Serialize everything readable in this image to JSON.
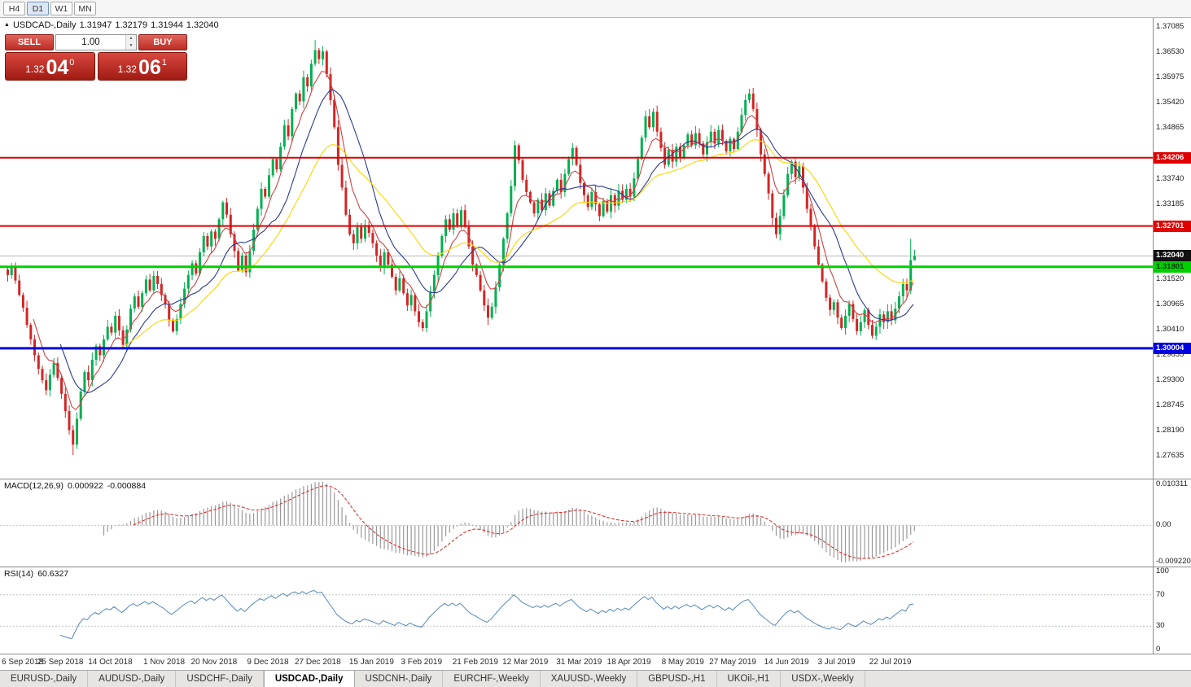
{
  "toolbar": {
    "timeframes": [
      {
        "label": "H4",
        "active": false
      },
      {
        "label": "D1",
        "active": true
      },
      {
        "label": "W1",
        "active": false
      },
      {
        "label": "MN",
        "active": false
      }
    ]
  },
  "chart_title": {
    "icon": "▲",
    "symbol": "USDCAD-,Daily",
    "open": "1.31947",
    "high": "1.32179",
    "low": "1.31944",
    "close": "1.32040"
  },
  "trade_panel": {
    "sell_label": "SELL",
    "buy_label": "BUY",
    "volume": "1.00",
    "bid": {
      "prefix": "1.32",
      "big": "04",
      "sup": "0"
    },
    "ask": {
      "prefix": "1.32",
      "big": "06",
      "sup": "1"
    }
  },
  "chart_data": {
    "type": "candlestick",
    "title": "USDCAD-,Daily",
    "x_labels": [
      "6 Sep 2018",
      "25 Sep 2018",
      "14 Oct 2018",
      "1 Nov 2018",
      "20 Nov 2018",
      "9 Dec 2018",
      "27 Dec 2018",
      "15 Jan 2019",
      "3 Feb 2019",
      "21 Feb 2019",
      "12 Mar 2019",
      "31 Mar 2019",
      "18 Apr 2019",
      "8 May 2019",
      "27 May 2019",
      "14 Jun 2019",
      "3 Jul 2019",
      "22 Jul 2019"
    ],
    "x_label_indices": [
      0,
      14,
      27,
      41,
      54,
      68,
      81,
      95,
      108,
      122,
      135,
      149,
      162,
      176,
      189,
      203,
      216,
      230
    ],
    "closes": [
      1.3162,
      1.3178,
      1.315,
      1.3118,
      1.309,
      1.3052,
      1.302,
      1.2985,
      1.2955,
      1.293,
      1.2908,
      1.2942,
      1.2968,
      1.2935,
      1.29,
      1.2862,
      1.282,
      1.2788,
      1.2845,
      1.2905,
      1.2948,
      1.293,
      1.2975,
      1.3005,
      1.2985,
      1.302,
      1.3048,
      1.3035,
      1.3072,
      1.304,
      1.3008,
      1.3042,
      1.3088,
      1.3115,
      1.3092,
      1.3122,
      1.3152,
      1.3128,
      1.316,
      1.3142,
      1.3118,
      1.3098,
      1.3062,
      1.3038,
      1.3065,
      1.3098,
      1.3132,
      1.3162,
      1.3188,
      1.3165,
      1.3212,
      1.3248,
      1.3225,
      1.3258,
      1.3242,
      1.3285,
      1.3322,
      1.3295,
      1.3252,
      1.3215,
      1.3172,
      1.3205,
      1.3168,
      1.3215,
      1.3262,
      1.3308,
      1.3352,
      1.3335,
      1.3382,
      1.3418,
      1.3395,
      1.3445,
      1.3492,
      1.3468,
      1.3528,
      1.3562,
      1.3545,
      1.3598,
      1.3578,
      1.3628,
      1.3658,
      1.3638,
      1.3655,
      1.3605,
      1.3548,
      1.3488,
      1.3405,
      1.3355,
      1.3295,
      1.3252,
      1.3232,
      1.3268,
      1.3242,
      1.3272,
      1.3255,
      1.3232,
      1.3205,
      1.3178,
      1.3212,
      1.3185,
      1.3158,
      1.3128,
      1.3155,
      1.3122,
      1.3095,
      1.3118,
      1.3082,
      1.3058,
      1.3045,
      1.3082,
      1.3125,
      1.3162,
      1.3205,
      1.3248,
      1.3285,
      1.3262,
      1.3298,
      1.3272,
      1.3305,
      1.3268,
      1.3225,
      1.3185,
      1.3162,
      1.3128,
      1.3095,
      1.3068,
      1.3092,
      1.3135,
      1.3185,
      1.3242,
      1.3298,
      1.3358,
      1.3448,
      1.3415,
      1.3372,
      1.3345,
      1.3322,
      1.3298,
      1.3328,
      1.3305,
      1.3342,
      1.3315,
      1.3348,
      1.3372,
      1.3345,
      1.3385,
      1.3418,
      1.3442,
      1.3405,
      1.3365,
      1.3338,
      1.3312,
      1.3345,
      1.3318,
      1.3292,
      1.3325,
      1.3302,
      1.3338,
      1.3315,
      1.3348,
      1.3328,
      1.3352,
      1.3335,
      1.3375,
      1.3418,
      1.3465,
      1.3512,
      1.3488,
      1.3522,
      1.3478,
      1.3442,
      1.3405,
      1.3438,
      1.3412,
      1.3445,
      1.3422,
      1.3448,
      1.3472,
      1.3448,
      1.3475,
      1.3452,
      1.3428,
      1.3455,
      1.3478,
      1.3452,
      1.3482,
      1.3458,
      1.3435,
      1.3462,
      1.344,
      1.3478,
      1.3515,
      1.3548,
      1.3562,
      1.3528,
      1.3482,
      1.3428,
      1.3385,
      1.3342,
      1.3288,
      1.3252,
      1.3292,
      1.3338,
      1.3385,
      1.3412,
      1.3378,
      1.3402,
      1.3355,
      1.3308,
      1.3272,
      1.3225,
      1.3185,
      1.3148,
      1.3112,
      1.3085,
      1.3102,
      1.3068,
      1.3045,
      1.3072,
      1.3098,
      1.3065,
      1.3038,
      1.3058,
      1.3085,
      1.3052,
      1.3028,
      1.3048,
      1.3075,
      1.3058,
      1.3082,
      1.3062,
      1.3088,
      1.3115,
      1.3142,
      1.3128,
      1.3195,
      1.3204
    ],
    "last_candle": {
      "open": 1.31947,
      "high": 1.32179,
      "low": 1.31944,
      "close": 1.3204
    },
    "extremes": {
      "high": {
        "index": 80,
        "price": 1.368
      },
      "low": {
        "index": 17,
        "price": 1.2765
      },
      "late_spike": {
        "index": 235,
        "price": 1.3242
      }
    },
    "price_axis": {
      "min": 1.2713,
      "max": 1.3729,
      "ticks": [
        1.37085,
        1.3653,
        1.35975,
        1.3542,
        1.34865,
        1.3374,
        1.33185,
        1.3152,
        1.30965,
        1.3041,
        1.29855,
        1.293,
        1.28745,
        1.2819,
        1.27635
      ]
    },
    "hlines": [
      {
        "value": 1.34206,
        "label": "1.34206",
        "color": "#e00000",
        "width": 2,
        "text": "#ffffff"
      },
      {
        "value": 1.32701,
        "label": "1.32701",
        "color": "#e00000",
        "width": 2,
        "text": "#ffffff"
      },
      {
        "value": 1.31801,
        "label": "1.31801",
        "color": "#00d000",
        "width": 3,
        "text": "#003300"
      },
      {
        "value": 1.30004,
        "label": "1.30004",
        "color": "#0000e0",
        "width": 3,
        "text": "#ffffff"
      }
    ],
    "current_price": {
      "value": 1.3204,
      "label": "1.32040",
      "bg": "#111111",
      "text": "#ffffff"
    },
    "colors": {
      "up": "#00b050",
      "down": "#d32525"
    },
    "moving_averages": [
      {
        "period": 7,
        "type": "ema",
        "color": "#cc4444"
      },
      {
        "period": 14,
        "type": "sma",
        "color": "#2b3a94"
      },
      {
        "period": 30,
        "type": "ema",
        "color": "#ffd400"
      }
    ],
    "macd": {
      "label": "MACD(12,26,9)",
      "value": "0.000922",
      "signal_value": "-0.000884",
      "fast": 12,
      "slow": 26,
      "signal_period": 9,
      "axis_labels": [
        "0.010311",
        "0.00",
        "-0.009220"
      ],
      "hist_color": "#9a9a9a",
      "signal_color": "#dd2222"
    },
    "rsi": {
      "label": "RSI(14)",
      "value": "60.6327",
      "period": 14,
      "axis_labels": [
        "100",
        "70",
        "30",
        "0"
      ],
      "levels": [
        70,
        30
      ],
      "color": "#5588bb"
    }
  },
  "tabs": [
    {
      "label": "EURUSD-,Daily",
      "active": false
    },
    {
      "label": "AUDUSD-,Daily",
      "active": false
    },
    {
      "label": "USDCHF-,Daily",
      "active": false
    },
    {
      "label": "USDCAD-,Daily",
      "active": true
    },
    {
      "label": "USDCNH-,Daily",
      "active": false
    },
    {
      "label": "EURCHF-,Weekly",
      "active": false
    },
    {
      "label": "XAUUSD-,Weekly",
      "active": false
    },
    {
      "label": "GBPUSD-,H1",
      "active": false
    },
    {
      "label": "UKOil-,H1",
      "active": false
    },
    {
      "label": "USDX-,Weekly",
      "active": false
    }
  ]
}
